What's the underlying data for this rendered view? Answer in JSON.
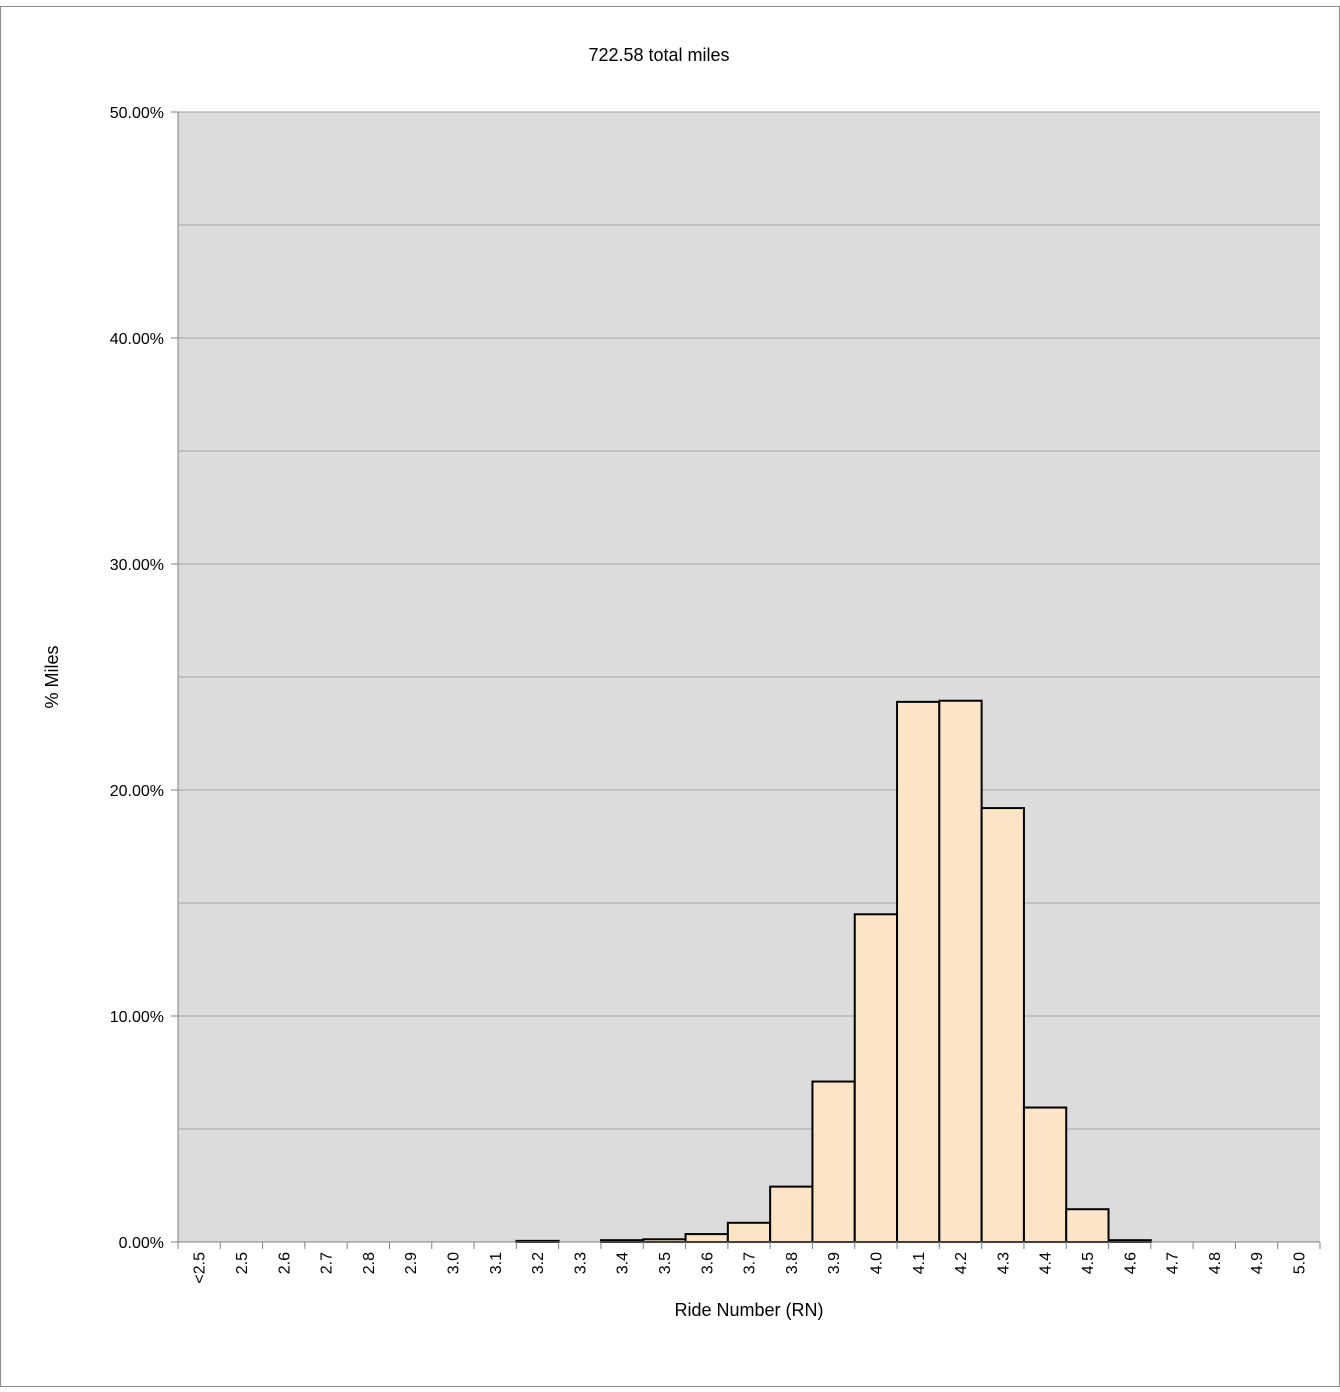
{
  "chart_data": {
    "type": "bar",
    "title": "722.58 total miles",
    "xlabel": "Ride Number (RN)",
    "ylabel": "% Miles",
    "categories": [
      "<2.5",
      "2.5",
      "2.6",
      "2.7",
      "2.8",
      "2.9",
      "3.0",
      "3.1",
      "3.2",
      "3.3",
      "3.4",
      "3.5",
      "3.6",
      "3.7",
      "3.8",
      "3.9",
      "4.0",
      "4.1",
      "4.2",
      "4.3",
      "4.4",
      "4.5",
      "4.6",
      "4.7",
      "4.8",
      "4.9",
      "5.0"
    ],
    "values": [
      0.0,
      0.0,
      0.0,
      0.0,
      0.0,
      0.0,
      0.0,
      0.0,
      0.05,
      0.0,
      0.08,
      0.12,
      0.35,
      0.85,
      2.45,
      7.1,
      14.5,
      23.9,
      23.95,
      19.2,
      5.95,
      1.45,
      0.08,
      0.0,
      0.0,
      0.0,
      0.0
    ],
    "ylim": [
      0,
      50
    ],
    "yticks": [
      {
        "value": 0,
        "label": "0.00%"
      },
      {
        "value": 10,
        "label": "10.00%"
      },
      {
        "value": 20,
        "label": "20.00%"
      },
      {
        "value": 30,
        "label": "30.00%"
      },
      {
        "value": 40,
        "label": "40.00%"
      },
      {
        "value": 50,
        "label": "50.00%"
      }
    ],
    "minor_gridlines": [
      5,
      15,
      25,
      35,
      45
    ],
    "grid": true,
    "legend": "none",
    "colors": {
      "bar_fill": "#FCE4C6",
      "bar_stroke": "#000000",
      "plot_background": "#DCDCDC",
      "gridline": "#A6A6A6"
    }
  }
}
